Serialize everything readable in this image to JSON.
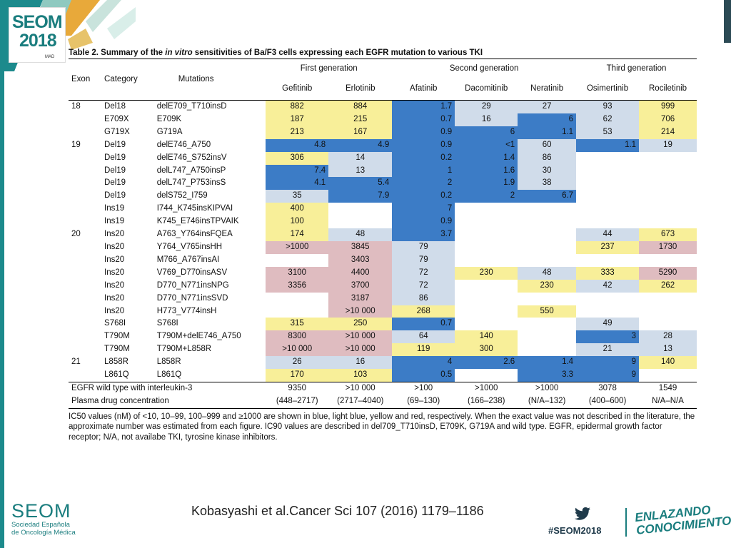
{
  "logo": {
    "line1": "SEOM",
    "line2": "2018",
    "line3": "MAD"
  },
  "table": {
    "title_prefix": "Table 2.   Summary of the ",
    "title_italic": "in vitro",
    "title_suffix": " sensitivities of Ba/F3 cells expressing each EGFR mutation to various TKI",
    "group_headers": [
      "First generation",
      "Second generation",
      "Third generation"
    ],
    "col_exon": "Exon",
    "col_category": "Category",
    "col_mutations": "Mutations",
    "drugs": [
      "Gefitinib",
      "Erlotinib",
      "Afatinib",
      "Dacomitinib",
      "Neratinib",
      "Osimertinib",
      "Rociletinib"
    ],
    "rows": [
      {
        "exon": "18",
        "category": "Del18",
        "mutation": "delE709_T710insD",
        "cells": [
          {
            "v": "882",
            "c": "yellow"
          },
          {
            "v": "884",
            "c": "yellow"
          },
          {
            "v": "1.7",
            "c": "blue"
          },
          {
            "v": "29",
            "c": "lblue"
          },
          {
            "v": "27",
            "c": "lblue"
          },
          {
            "v": "93",
            "c": "lblue"
          },
          {
            "v": "999",
            "c": "yellow"
          }
        ]
      },
      {
        "exon": "",
        "category": "E709X",
        "mutation": "E709K",
        "cells": [
          {
            "v": "187",
            "c": "yellow"
          },
          {
            "v": "215",
            "c": "yellow"
          },
          {
            "v": "0.7",
            "c": "blue"
          },
          {
            "v": "16",
            "c": "lblue"
          },
          {
            "v": "6",
            "c": "blue"
          },
          {
            "v": "62",
            "c": "lblue"
          },
          {
            "v": "706",
            "c": "yellow"
          }
        ]
      },
      {
        "exon": "",
        "category": "G719X",
        "mutation": "G719A",
        "cells": [
          {
            "v": "213",
            "c": "yellow"
          },
          {
            "v": "167",
            "c": "yellow"
          },
          {
            "v": "0.9",
            "c": "blue"
          },
          {
            "v": "6",
            "c": "blue"
          },
          {
            "v": "1.1",
            "c": "blue"
          },
          {
            "v": "53",
            "c": "lblue"
          },
          {
            "v": "214",
            "c": "yellow"
          }
        ]
      },
      {
        "exon": "19",
        "category": "Del19",
        "mutation": "delE746_A750",
        "cells": [
          {
            "v": "4.8",
            "c": "blue"
          },
          {
            "v": "4.9",
            "c": "blue"
          },
          {
            "v": "0.9",
            "c": "blue"
          },
          {
            "v": "<1",
            "c": "blue"
          },
          {
            "v": "60",
            "c": "lblue"
          },
          {
            "v": "1.1",
            "c": "blue"
          },
          {
            "v": "19",
            "c": "lblue"
          }
        ]
      },
      {
        "exon": "",
        "category": "Del19",
        "mutation": "delE746_S752insV",
        "cells": [
          {
            "v": "306",
            "c": "yellow"
          },
          {
            "v": "14",
            "c": "lblue"
          },
          {
            "v": "0.2",
            "c": "blue"
          },
          {
            "v": "1.4",
            "c": "blue"
          },
          {
            "v": "86",
            "c": "lblue"
          },
          {
            "v": "",
            "c": "none"
          },
          {
            "v": "",
            "c": "none"
          }
        ]
      },
      {
        "exon": "",
        "category": "Del19",
        "mutation": "delL747_A750insP",
        "cells": [
          {
            "v": "7.4",
            "c": "blue"
          },
          {
            "v": "13",
            "c": "lblue"
          },
          {
            "v": "1",
            "c": "blue"
          },
          {
            "v": "1.6",
            "c": "blue"
          },
          {
            "v": "30",
            "c": "lblue"
          },
          {
            "v": "",
            "c": "none"
          },
          {
            "v": "",
            "c": "none"
          }
        ]
      },
      {
        "exon": "",
        "category": "Del19",
        "mutation": "delL747_P753insS",
        "cells": [
          {
            "v": "4.1",
            "c": "blue"
          },
          {
            "v": "5.4",
            "c": "blue"
          },
          {
            "v": "2",
            "c": "blue"
          },
          {
            "v": "1.9",
            "c": "blue"
          },
          {
            "v": "38",
            "c": "lblue"
          },
          {
            "v": "",
            "c": "none"
          },
          {
            "v": "",
            "c": "none"
          }
        ]
      },
      {
        "exon": "",
        "category": "Del19",
        "mutation": "delS752_I759",
        "cells": [
          {
            "v": "35",
            "c": "lblue"
          },
          {
            "v": "7.9",
            "c": "blue"
          },
          {
            "v": "0.2",
            "c": "blue"
          },
          {
            "v": "2",
            "c": "blue"
          },
          {
            "v": "6.7",
            "c": "blue"
          },
          {
            "v": "",
            "c": "none"
          },
          {
            "v": "",
            "c": "none"
          }
        ]
      },
      {
        "exon": "",
        "category": "Ins19",
        "mutation": "I744_K745insKIPVAI",
        "cells": [
          {
            "v": "400",
            "c": "yellow"
          },
          {
            "v": "",
            "c": "none"
          },
          {
            "v": "7",
            "c": "blue"
          },
          {
            "v": "",
            "c": "none"
          },
          {
            "v": "",
            "c": "none"
          },
          {
            "v": "",
            "c": "none"
          },
          {
            "v": "",
            "c": "none"
          }
        ]
      },
      {
        "exon": "",
        "category": "Ins19",
        "mutation": "K745_E746insTPVAIK",
        "cells": [
          {
            "v": "100",
            "c": "yellow"
          },
          {
            "v": "",
            "c": "none"
          },
          {
            "v": "0.9",
            "c": "blue"
          },
          {
            "v": "",
            "c": "none"
          },
          {
            "v": "",
            "c": "none"
          },
          {
            "v": "",
            "c": "none"
          },
          {
            "v": "",
            "c": "none"
          }
        ]
      },
      {
        "exon": "20",
        "category": "Ins20",
        "mutation": "A763_Y764insFQEA",
        "cells": [
          {
            "v": "174",
            "c": "yellow"
          },
          {
            "v": "48",
            "c": "lblue"
          },
          {
            "v": "3.7",
            "c": "blue"
          },
          {
            "v": "",
            "c": "none"
          },
          {
            "v": "",
            "c": "none"
          },
          {
            "v": "44",
            "c": "lblue"
          },
          {
            "v": "673",
            "c": "yellow"
          }
        ]
      },
      {
        "exon": "",
        "category": "Ins20",
        "mutation": "Y764_V765insHH",
        "cells": [
          {
            "v": ">1000",
            "c": "red"
          },
          {
            "v": "3845",
            "c": "red"
          },
          {
            "v": "79",
            "c": "lblue"
          },
          {
            "v": "",
            "c": "none"
          },
          {
            "v": "",
            "c": "none"
          },
          {
            "v": "237",
            "c": "yellow"
          },
          {
            "v": "1730",
            "c": "red"
          }
        ]
      },
      {
        "exon": "",
        "category": "Ins20",
        "mutation": "M766_A767insAI",
        "cells": [
          {
            "v": "",
            "c": "none"
          },
          {
            "v": "3403",
            "c": "red"
          },
          {
            "v": "79",
            "c": "lblue"
          },
          {
            "v": "",
            "c": "none"
          },
          {
            "v": "",
            "c": "none"
          },
          {
            "v": "",
            "c": "none"
          },
          {
            "v": "",
            "c": "none"
          }
        ]
      },
      {
        "exon": "",
        "category": "Ins20",
        "mutation": "V769_D770insASV",
        "cells": [
          {
            "v": "3100",
            "c": "red"
          },
          {
            "v": "4400",
            "c": "red"
          },
          {
            "v": "72",
            "c": "lblue"
          },
          {
            "v": "230",
            "c": "yellow"
          },
          {
            "v": "48",
            "c": "lblue"
          },
          {
            "v": "333",
            "c": "yellow"
          },
          {
            "v": "5290",
            "c": "red"
          }
        ]
      },
      {
        "exon": "",
        "category": "Ins20",
        "mutation": "D770_N771insNPG",
        "cells": [
          {
            "v": "3356",
            "c": "red"
          },
          {
            "v": "3700",
            "c": "red"
          },
          {
            "v": "72",
            "c": "lblue"
          },
          {
            "v": "",
            "c": "none"
          },
          {
            "v": "230",
            "c": "yellow"
          },
          {
            "v": "42",
            "c": "lblue"
          },
          {
            "v": "262",
            "c": "yellow"
          }
        ]
      },
      {
        "exon": "",
        "category": "Ins20",
        "mutation": "D770_N771insSVD",
        "cells": [
          {
            "v": "",
            "c": "none"
          },
          {
            "v": "3187",
            "c": "red"
          },
          {
            "v": "86",
            "c": "lblue"
          },
          {
            "v": "",
            "c": "none"
          },
          {
            "v": "",
            "c": "none"
          },
          {
            "v": "",
            "c": "none"
          },
          {
            "v": "",
            "c": "none"
          }
        ]
      },
      {
        "exon": "",
        "category": "Ins20",
        "mutation": "H773_V774insH",
        "cells": [
          {
            "v": "",
            "c": "none"
          },
          {
            "v": ">10 000",
            "c": "red"
          },
          {
            "v": "268",
            "c": "yellow"
          },
          {
            "v": "",
            "c": "none"
          },
          {
            "v": "550",
            "c": "yellow"
          },
          {
            "v": "",
            "c": "none"
          },
          {
            "v": "",
            "c": "none"
          }
        ]
      },
      {
        "exon": "",
        "category": "S768I",
        "mutation": "S768I",
        "cells": [
          {
            "v": "315",
            "c": "yellow"
          },
          {
            "v": "250",
            "c": "yellow"
          },
          {
            "v": "0.7",
            "c": "blue"
          },
          {
            "v": "",
            "c": "none"
          },
          {
            "v": "",
            "c": "none"
          },
          {
            "v": "49",
            "c": "lblue"
          },
          {
            "v": "",
            "c": "none"
          }
        ]
      },
      {
        "exon": "",
        "category": "T790M",
        "mutation": "T790M+delE746_A750",
        "cells": [
          {
            "v": "8300",
            "c": "red"
          },
          {
            "v": ">10 000",
            "c": "red"
          },
          {
            "v": "64",
            "c": "lblue"
          },
          {
            "v": "140",
            "c": "yellow"
          },
          {
            "v": "",
            "c": "none"
          },
          {
            "v": "3",
            "c": "blue"
          },
          {
            "v": "28",
            "c": "lblue"
          }
        ]
      },
      {
        "exon": "",
        "category": "T790M",
        "mutation": "T790M+L858R",
        "cells": [
          {
            "v": ">10 000",
            "c": "red"
          },
          {
            "v": ">10 000",
            "c": "red"
          },
          {
            "v": "119",
            "c": "yellow"
          },
          {
            "v": "300",
            "c": "yellow"
          },
          {
            "v": "",
            "c": "none"
          },
          {
            "v": "21",
            "c": "lblue"
          },
          {
            "v": "13",
            "c": "lblue"
          }
        ]
      },
      {
        "exon": "21",
        "category": "L858R",
        "mutation": "L858R",
        "cells": [
          {
            "v": "26",
            "c": "lblue"
          },
          {
            "v": "16",
            "c": "lblue"
          },
          {
            "v": "4",
            "c": "blue"
          },
          {
            "v": "2.6",
            "c": "blue"
          },
          {
            "v": "1.4",
            "c": "blue"
          },
          {
            "v": "9",
            "c": "blue"
          },
          {
            "v": "140",
            "c": "yellow"
          }
        ]
      },
      {
        "exon": "",
        "category": "L861Q",
        "mutation": "L861Q",
        "cells": [
          {
            "v": "170",
            "c": "yellow"
          },
          {
            "v": "103",
            "c": "yellow"
          },
          {
            "v": "0.5",
            "c": "blue"
          },
          {
            "v": "",
            "c": "none"
          },
          {
            "v": "3.3",
            "c": "blue"
          },
          {
            "v": "9",
            "c": "blue"
          },
          {
            "v": "",
            "c": "none"
          }
        ]
      }
    ],
    "summary_rows": [
      {
        "label": "EGFR wild type with interleukin-3",
        "values": [
          "9350",
          ">10 000",
          ">100",
          ">1000",
          ">1000",
          "3078",
          "1549"
        ]
      },
      {
        "label": "Plasma drug concentration",
        "values": [
          "(448–2717)",
          "(2717–4040)",
          "(69–130)",
          "(166–238)",
          "(N/A–132)",
          "(400–600)",
          "N/A–N/A"
        ]
      }
    ],
    "footnote": "IC50 values (nM) of <10, 10–99, 100–999 and ≥1000 are shown in blue, light blue, yellow and red, respectively. When the exact value was not described in the literature, the approximate number was estimated from each figure. IC90 values are described in del709_T710insD, E709K, G719A and wild type. EGFR, epidermal growth factor receptor;  N/A, not availabe TKI, tyrosine kinase inhibitors."
  },
  "colors": {
    "blue": "#3c7cc6",
    "light_blue": "#d0dcea",
    "yellow": "#f8ef99",
    "red": "#dfbcc0",
    "teal": "#1a7d7e"
  },
  "footer": {
    "seom_big": "SEOM",
    "seom_small_1": "Sociedad Española",
    "seom_small_2": "de Oncología Médica",
    "citation": "Kobasyashi et al.Cancer Sci 107 (2016) 1179–1186",
    "twitter_icon": "twitter-bird-icon",
    "hashtag": "#SEOM2018",
    "tagline_1": "ENLAZANDO",
    "tagline_2": "CONOCIMIENTO"
  }
}
